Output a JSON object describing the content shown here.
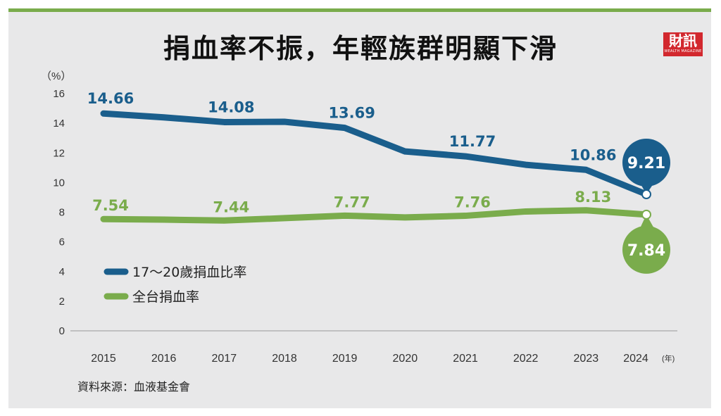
{
  "title": "捐血率不振，年輕族群明顯下滑",
  "logo": {
    "text": "財訊",
    "subtext": "WEALTH MAGAZINE"
  },
  "source": "資料來源：血液基金會",
  "colors": {
    "blue": "#1a5e8c",
    "green": "#7aac4c",
    "background": "#e8e8e9",
    "accent_bar": "#7aac4c"
  },
  "chart_data": {
    "type": "line",
    "title": "捐血率不振，年輕族群明顯下滑",
    "ylabel": "（%）",
    "xlabel_unit": "(年)",
    "ylim": [
      0,
      16
    ],
    "yticks": [
      0,
      2,
      4,
      6,
      8,
      10,
      12,
      14,
      16
    ],
    "categories": [
      "2015",
      "2016",
      "2017",
      "2018",
      "2019",
      "2020",
      "2021",
      "2022",
      "2023",
      "2024"
    ],
    "grid": false,
    "legend_placement": "center-left",
    "series": [
      {
        "name": "17～20歲捐血比率",
        "color": "#1a5e8c",
        "values": [
          14.66,
          14.4,
          14.08,
          14.1,
          13.69,
          12.1,
          11.77,
          11.2,
          10.86,
          9.21
        ],
        "labels": [
          "14.66",
          null,
          "14.08",
          null,
          "13.69",
          null,
          "11.77",
          null,
          "10.86",
          "9.21"
        ]
      },
      {
        "name": "全台捐血率",
        "color": "#7aac4c",
        "values": [
          7.54,
          7.5,
          7.44,
          7.6,
          7.77,
          7.65,
          7.76,
          8.05,
          8.13,
          7.84
        ],
        "labels": [
          "7.54",
          null,
          "7.44",
          null,
          "7.77",
          null,
          "7.76",
          null,
          "8.13",
          "7.84"
        ]
      }
    ]
  }
}
